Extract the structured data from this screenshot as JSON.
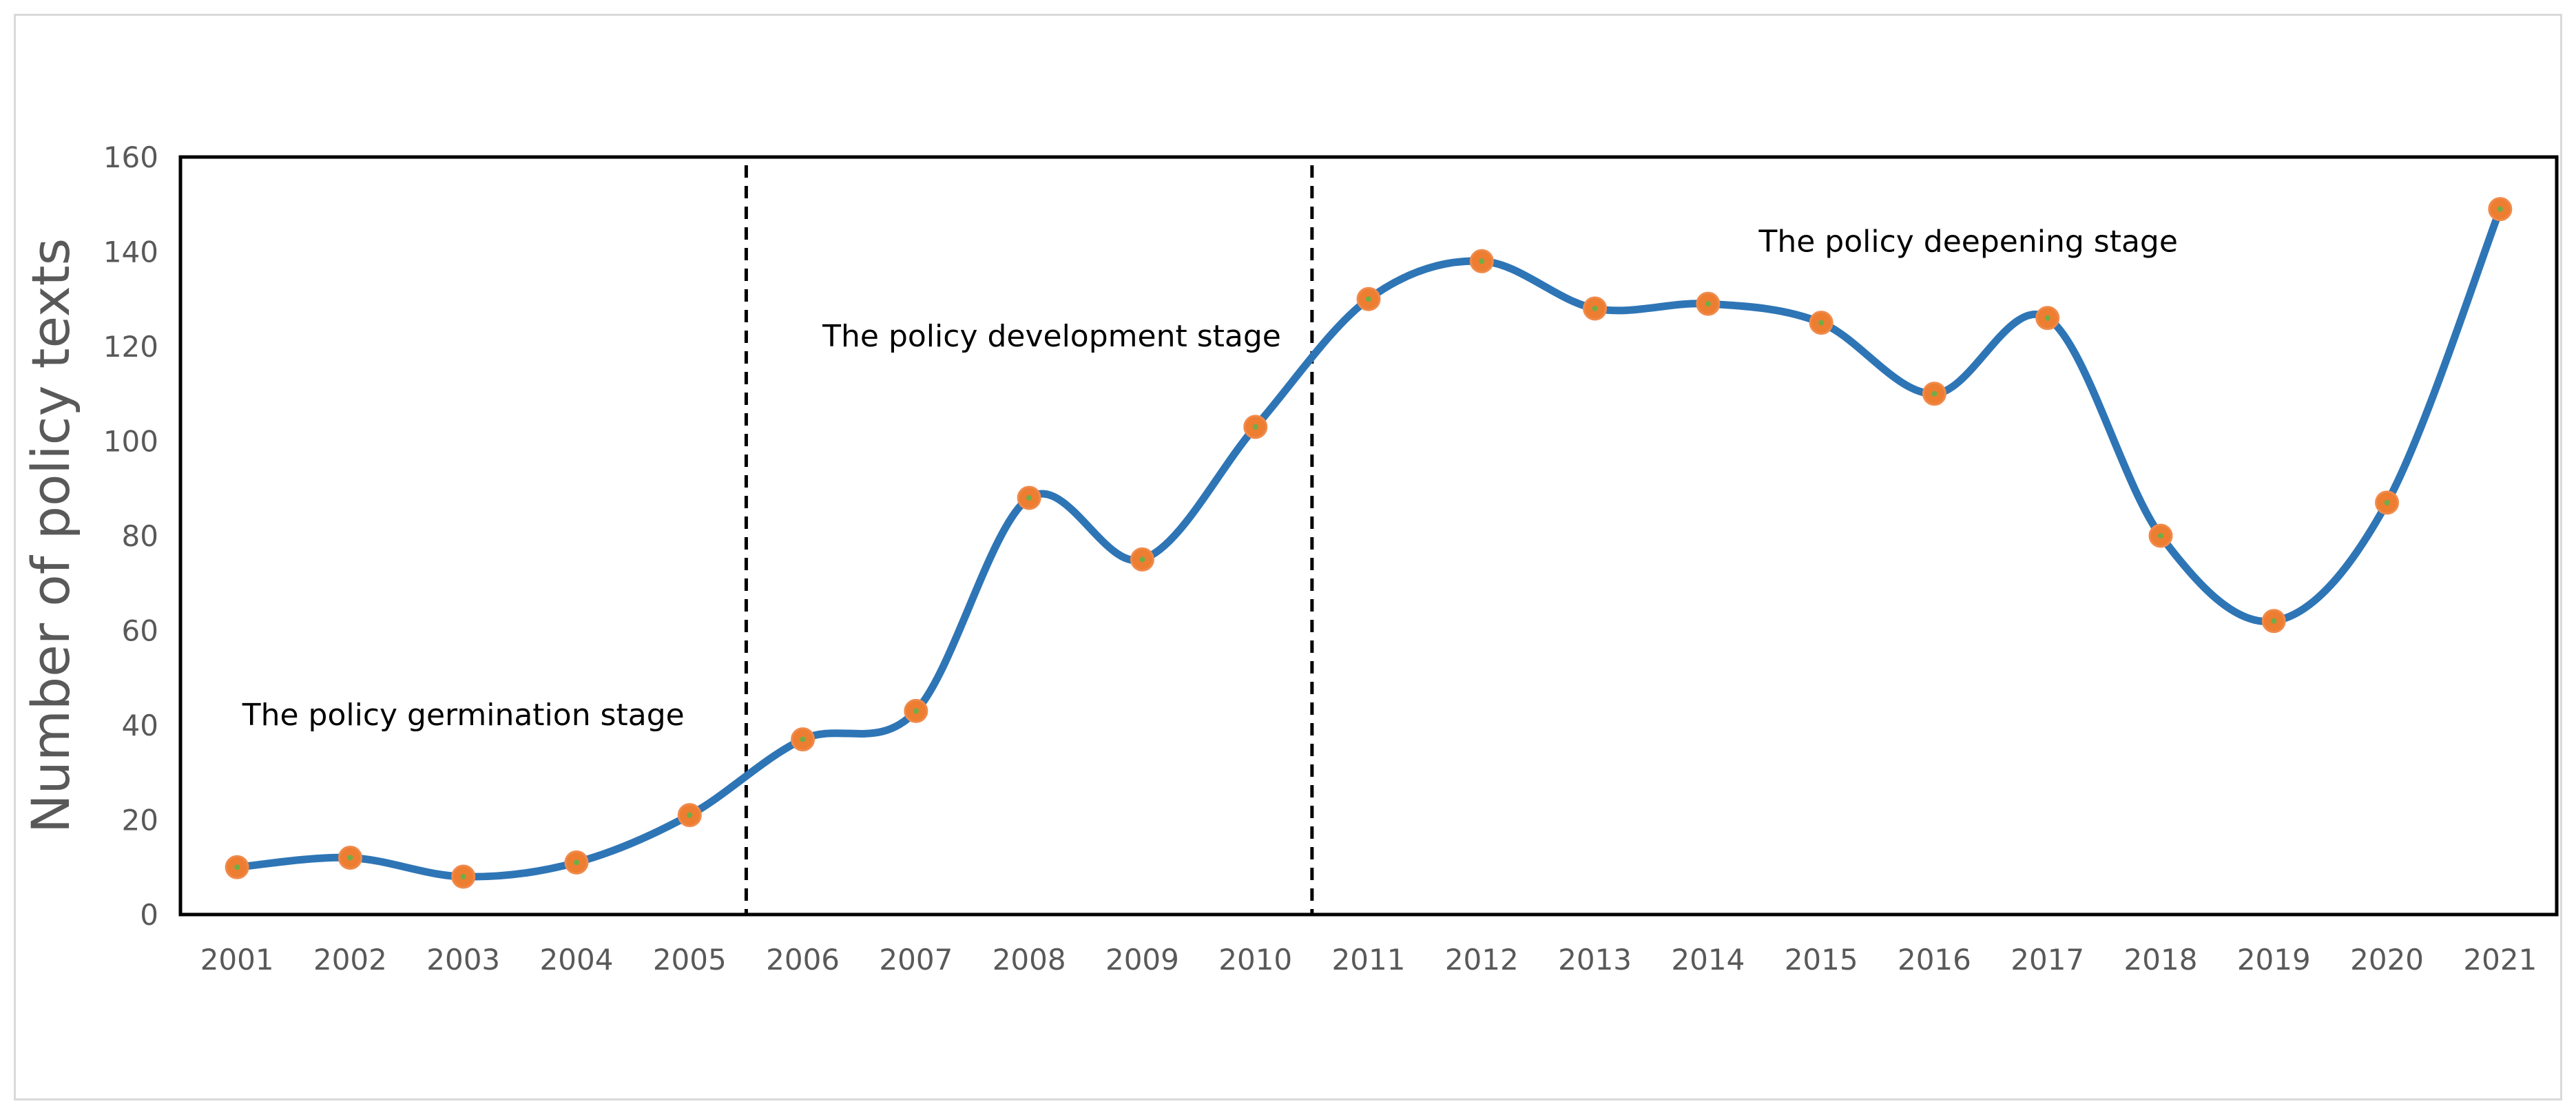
{
  "chart_data": {
    "type": "line",
    "title": "",
    "xlabel": "",
    "ylabel": "Number of policy texts",
    "categories": [
      "2001",
      "2002",
      "2003",
      "2004",
      "2005",
      "2006",
      "2007",
      "2008",
      "2009",
      "2010",
      "2011",
      "2012",
      "2013",
      "2014",
      "2015",
      "2016",
      "2017",
      "2018",
      "2019",
      "2020",
      "2021"
    ],
    "series": [
      {
        "name": "Number of policy texts",
        "values": [
          10,
          12,
          8,
          11,
          21,
          37,
          43,
          88,
          75,
          103,
          130,
          138,
          128,
          129,
          125,
          110,
          126,
          80,
          62,
          87,
          149
        ]
      }
    ],
    "ylim": [
      0,
      160
    ],
    "yticks": [
      0,
      20,
      40,
      60,
      80,
      100,
      120,
      140,
      160
    ],
    "grid": false,
    "smooth": true,
    "stage_dividers": [
      2005.5,
      2010.5
    ],
    "annotations": [
      {
        "text": "The policy germination stage",
        "x": 2003.0,
        "y": 40
      },
      {
        "text": "The policy development stage",
        "x": 2008.2,
        "y": 120
      },
      {
        "text": "The policy deepening stage",
        "x": 2016.3,
        "y": 140
      }
    ],
    "colors": {
      "line": "#2E75B6",
      "marker_fill": "#ED7D31",
      "marker_center": "#70AD47",
      "divider": "#000000",
      "axis": "#000000",
      "tick_text": "#595959"
    }
  }
}
